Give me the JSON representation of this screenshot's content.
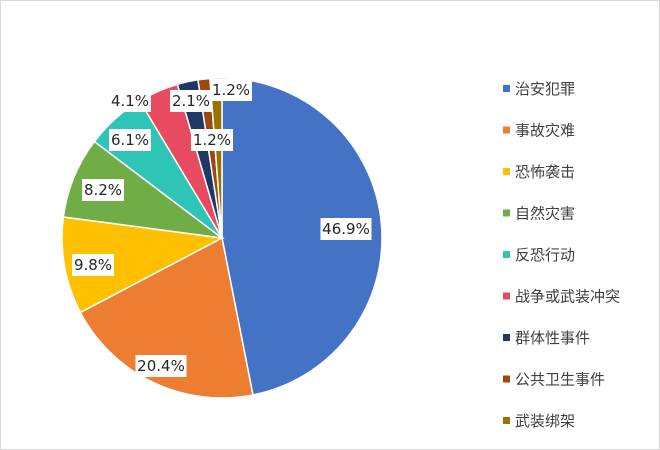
{
  "chart_data": {
    "type": "pie",
    "title": "",
    "legend_position": "right",
    "categories": [
      "治安犯罪",
      "事故灾难",
      "恐怖袭击",
      "自然灾害",
      "反恐行动",
      "战争或武装冲突",
      "群体性事件",
      "公共卫生事件",
      "武装绑架"
    ],
    "values": [
      46.9,
      20.4,
      9.8,
      8.2,
      6.1,
      4.1,
      2.1,
      1.2,
      1.2
    ],
    "value_labels": [
      "46.9%",
      "20.4%",
      "9.8%",
      "8.2%",
      "6.1%",
      "4.1%",
      "2.1%",
      "1.2%",
      "1.2%"
    ],
    "colors": [
      "#4472C4",
      "#ED7D31",
      "#FFC000",
      "#70AD47",
      "#2EC4B6",
      "#E84A5F",
      "#1F3864",
      "#9E480E",
      "#997300"
    ]
  }
}
